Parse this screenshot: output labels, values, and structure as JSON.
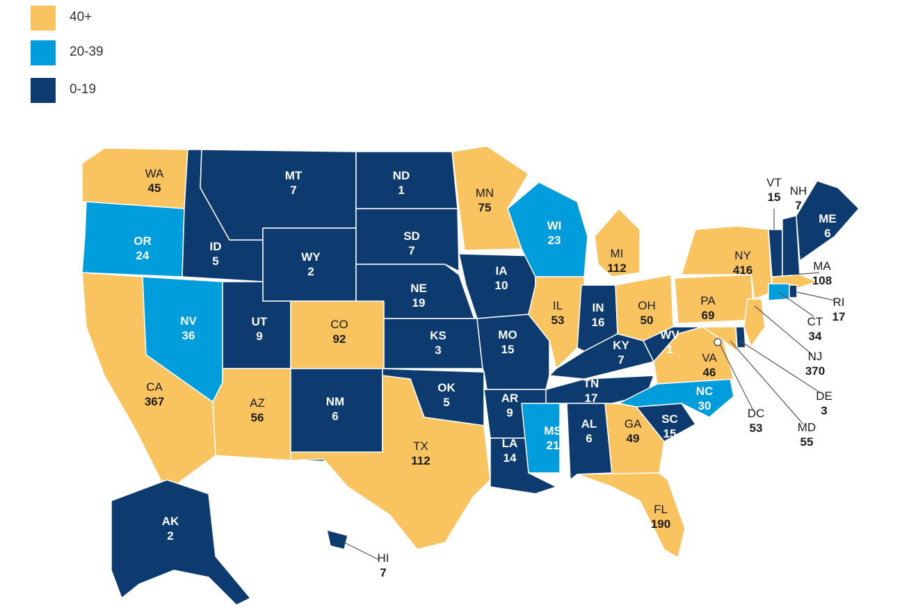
{
  "colors": {
    "high": "#F9C35F",
    "mid": "#009DDC",
    "low": "#0D3B6F",
    "border": "#FFFFFF",
    "callout": "#555555",
    "text_on_dark": "#FFFFFF",
    "text_on_light": "#1A1A1A"
  },
  "legend": [
    {
      "label": "40+",
      "level": "high"
    },
    {
      "label": "20-39",
      "level": "mid"
    },
    {
      "label": "0-19",
      "level": "low"
    }
  ],
  "states": [
    {
      "abbr": "WA",
      "value": "45",
      "level": "high"
    },
    {
      "abbr": "OR",
      "value": "24",
      "level": "mid"
    },
    {
      "abbr": "CA",
      "value": "367",
      "level": "high"
    },
    {
      "abbr": "NV",
      "value": "36",
      "level": "mid"
    },
    {
      "abbr": "ID",
      "value": "5",
      "level": "low"
    },
    {
      "abbr": "MT",
      "value": "7",
      "level": "low"
    },
    {
      "abbr": "WY",
      "value": "2",
      "level": "low"
    },
    {
      "abbr": "UT",
      "value": "9",
      "level": "low"
    },
    {
      "abbr": "AZ",
      "value": "56",
      "level": "high"
    },
    {
      "abbr": "CO",
      "value": "92",
      "level": "high"
    },
    {
      "abbr": "NM",
      "value": "6",
      "level": "low"
    },
    {
      "abbr": "ND",
      "value": "1",
      "level": "low"
    },
    {
      "abbr": "SD",
      "value": "7",
      "level": "low"
    },
    {
      "abbr": "NE",
      "value": "19",
      "level": "low"
    },
    {
      "abbr": "KS",
      "value": "3",
      "level": "low"
    },
    {
      "abbr": "OK",
      "value": "5",
      "level": "low"
    },
    {
      "abbr": "TX",
      "value": "112",
      "level": "high"
    },
    {
      "abbr": "MN",
      "value": "75",
      "level": "high"
    },
    {
      "abbr": "IA",
      "value": "10",
      "level": "low"
    },
    {
      "abbr": "MO",
      "value": "15",
      "level": "low"
    },
    {
      "abbr": "AR",
      "value": "9",
      "level": "low"
    },
    {
      "abbr": "LA",
      "value": "14",
      "level": "low"
    },
    {
      "abbr": "WI",
      "value": "23",
      "level": "mid"
    },
    {
      "abbr": "IL",
      "value": "53",
      "level": "high"
    },
    {
      "abbr": "MI",
      "value": "112",
      "level": "high"
    },
    {
      "abbr": "IN",
      "value": "16",
      "level": "low"
    },
    {
      "abbr": "OH",
      "value": "50",
      "level": "high"
    },
    {
      "abbr": "KY",
      "value": "7",
      "level": "low"
    },
    {
      "abbr": "TN",
      "value": "17",
      "level": "low"
    },
    {
      "abbr": "MS",
      "value": "21",
      "level": "mid"
    },
    {
      "abbr": "AL",
      "value": "6",
      "level": "low"
    },
    {
      "abbr": "GA",
      "value": "49",
      "level": "high"
    },
    {
      "abbr": "FL",
      "value": "190",
      "level": "high"
    },
    {
      "abbr": "SC",
      "value": "15",
      "level": "low"
    },
    {
      "abbr": "NC",
      "value": "30",
      "level": "mid"
    },
    {
      "abbr": "VA",
      "value": "46",
      "level": "high"
    },
    {
      "abbr": "WV",
      "value": "1",
      "level": "low"
    },
    {
      "abbr": "PA",
      "value": "69",
      "level": "high"
    },
    {
      "abbr": "NY",
      "value": "416",
      "level": "high"
    },
    {
      "abbr": "VT",
      "value": "15",
      "level": "low"
    },
    {
      "abbr": "NH",
      "value": "7",
      "level": "low"
    },
    {
      "abbr": "ME",
      "value": "6",
      "level": "low"
    },
    {
      "abbr": "MA",
      "value": "108",
      "level": "high"
    },
    {
      "abbr": "RI",
      "value": "17",
      "level": "low"
    },
    {
      "abbr": "CT",
      "value": "34",
      "level": "mid"
    },
    {
      "abbr": "NJ",
      "value": "370",
      "level": "high"
    },
    {
      "abbr": "DE",
      "value": "3",
      "level": "low"
    },
    {
      "abbr": "MD",
      "value": "55",
      "level": "high"
    },
    {
      "abbr": "DC",
      "value": "53",
      "level": "high"
    },
    {
      "abbr": "AK",
      "value": "2",
      "level": "low"
    },
    {
      "abbr": "HI",
      "value": "7",
      "level": "low"
    }
  ]
}
